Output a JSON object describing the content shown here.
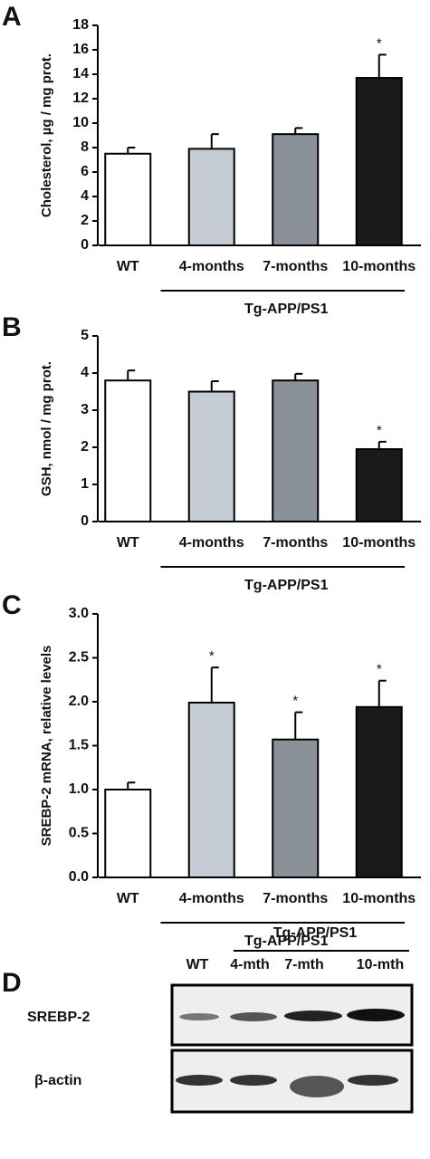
{
  "chart_data": [
    {
      "type": "bar",
      "panel": "A",
      "ylabel": "Cholesterol, µg / mg prot.",
      "categories": [
        "WT",
        "4-months",
        "7-months",
        "10-months"
      ],
      "values": [
        7.5,
        7.9,
        9.1,
        13.7
      ],
      "errors": [
        0.5,
        1.2,
        0.5,
        1.9
      ],
      "markers": [
        null,
        null,
        null,
        "*"
      ],
      "colors": [
        "#ffffff",
        "#c5cbd3",
        "#8a9199",
        "#1a1a1a"
      ],
      "ylim": [
        0,
        18
      ],
      "yticks": [
        0,
        2,
        4,
        6,
        8,
        10,
        12,
        14,
        16,
        18
      ],
      "group_label": "Tg-APP/PS1"
    },
    {
      "type": "bar",
      "panel": "B",
      "ylabel": "GSH, nmol / mg prot.",
      "categories": [
        "WT",
        "4-months",
        "7-months",
        "10-months"
      ],
      "values": [
        3.8,
        3.5,
        3.8,
        1.95
      ],
      "errors": [
        0.27,
        0.28,
        0.18,
        0.2
      ],
      "markers": [
        null,
        null,
        null,
        "*"
      ],
      "colors": [
        "#ffffff",
        "#c5cbd3",
        "#8a9199",
        "#1a1a1a"
      ],
      "ylim": [
        0,
        5
      ],
      "yticks": [
        0,
        1,
        2,
        3,
        4,
        5
      ],
      "group_label": "Tg-APP/PS1"
    },
    {
      "type": "bar",
      "panel": "C",
      "ylabel": "SREBP-2 mRNA, relative levels",
      "categories": [
        "WT",
        "4-months",
        "7-months",
        "10-months"
      ],
      "values": [
        1.0,
        1.99,
        1.57,
        1.94
      ],
      "errors": [
        0.08,
        0.4,
        0.31,
        0.3
      ],
      "markers": [
        null,
        "*",
        "*",
        "*"
      ],
      "colors": [
        "#ffffff",
        "#c5cbd3",
        "#8a9199",
        "#1a1a1a"
      ],
      "ylim": [
        0,
        3
      ],
      "yticks": [
        {
          "value": 0,
          "label": "0.0"
        },
        {
          "value": 0.5,
          "label": "0.5"
        },
        {
          "value": 1,
          "label": "1.0"
        },
        {
          "value": 1.5,
          "label": "1.5"
        },
        {
          "value": 2,
          "label": "2.0"
        },
        {
          "value": 2.5,
          "label": "2.5"
        },
        {
          "value": 3,
          "label": "3.0"
        }
      ],
      "group_label": "Tg-APP/PS1"
    }
  ],
  "blot": {
    "panel": "D",
    "group_label": "Tg-APP/PS1",
    "lanes": [
      "WT",
      "4-mth",
      "7-mth",
      "10-mth"
    ],
    "rows": [
      "SREBP-2",
      "β-actin"
    ]
  }
}
